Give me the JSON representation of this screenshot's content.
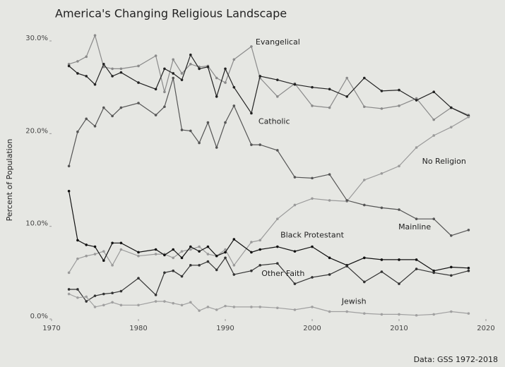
{
  "chart_data": {
    "type": "line",
    "title": "America's Changing Religious Landscape",
    "ylabel": "Percent of Population",
    "source": "Data: GSS 1972-2018",
    "x": [
      1972,
      1973,
      1974,
      1975,
      1976,
      1977,
      1978,
      1980,
      1982,
      1983,
      1984,
      1985,
      1986,
      1987,
      1988,
      1989,
      1990,
      1991,
      1993,
      1994,
      1996,
      1998,
      2000,
      2002,
      2004,
      2006,
      2008,
      2010,
      2012,
      2014,
      2016,
      2018
    ],
    "xlim": [
      1970,
      2020
    ],
    "xticks": [
      1970,
      1980,
      1990,
      2000,
      2010,
      2020
    ],
    "ylim": [
      0,
      30
    ],
    "yticks": [
      {
        "value": 0,
        "label": "0.0%"
      },
      {
        "value": 10,
        "label": "10.0%"
      },
      {
        "value": 20,
        "label": "20.0%"
      },
      {
        "value": 30,
        "label": "30.0%"
      }
    ],
    "series": [
      {
        "name": "Evangelical",
        "color": "#8a8a8a",
        "values": [
          27.5,
          27.8,
          28.3,
          30.6,
          27.2,
          27.0,
          27.0,
          27.3,
          28.4,
          24.5,
          28.0,
          26.5,
          27.5,
          27.2,
          27.3,
          26.0,
          25.5,
          28.0,
          29.4,
          26.0,
          24.0,
          25.4,
          23.0,
          22.8,
          26.0,
          22.9,
          22.7,
          23.0,
          23.8,
          21.5,
          22.8,
          22.0
        ]
      },
      {
        "name": "Catholic",
        "color": "#222222",
        "values": [
          27.3,
          26.5,
          26.2,
          25.3,
          27.5,
          26.2,
          26.6,
          25.5,
          24.8,
          27.0,
          26.5,
          25.8,
          28.5,
          27.0,
          27.2,
          24.0,
          27.0,
          25.0,
          22.2,
          26.2,
          25.8,
          25.3,
          25.0,
          24.8,
          24.0,
          26.0,
          24.6,
          24.7,
          23.6,
          24.5,
          22.8,
          21.9
        ]
      },
      {
        "name": "No Religion",
        "color": "#9a9a9a",
        "values": [
          5.0,
          6.5,
          6.8,
          7.0,
          7.3,
          5.8,
          7.5,
          6.8,
          7.0,
          7.0,
          6.6,
          7.3,
          7.5,
          7.8,
          7.0,
          6.8,
          7.5,
          5.8,
          8.3,
          8.5,
          10.8,
          12.3,
          13.0,
          12.8,
          12.7,
          15.0,
          15.7,
          16.5,
          18.5,
          19.8,
          20.7,
          21.8
        ]
      },
      {
        "name": "Mainline",
        "color": "#555555",
        "values": [
          16.5,
          20.2,
          21.6,
          20.8,
          22.8,
          21.9,
          22.8,
          23.3,
          22.0,
          22.9,
          26.0,
          20.4,
          20.3,
          19.0,
          21.2,
          18.5,
          21.2,
          23.0,
          18.8,
          18.8,
          18.2,
          15.3,
          15.2,
          15.6,
          12.8,
          12.3,
          12.0,
          11.8,
          10.8,
          10.8,
          9.0,
          9.6
        ]
      },
      {
        "name": "Black Protestant",
        "color": "#111111",
        "values": [
          13.8,
          8.5,
          8.0,
          7.8,
          6.3,
          8.2,
          8.2,
          7.2,
          7.5,
          6.9,
          7.5,
          6.6,
          7.8,
          7.3,
          7.8,
          6.8,
          7.2,
          8.6,
          7.2,
          7.5,
          7.8,
          7.3,
          7.8,
          6.6,
          5.8,
          6.6,
          6.4,
          6.4,
          6.4,
          5.2,
          5.6,
          5.5
        ]
      },
      {
        "name": "Other Faith",
        "color": "#333333",
        "values": [
          3.2,
          3.2,
          1.9,
          2.5,
          2.7,
          2.8,
          3.0,
          4.4,
          2.6,
          5.0,
          5.2,
          4.6,
          5.8,
          5.8,
          6.2,
          5.3,
          6.6,
          4.8,
          5.2,
          5.8,
          6.0,
          3.8,
          4.5,
          4.8,
          5.7,
          4.0,
          5.1,
          3.8,
          5.4,
          5.0,
          4.7,
          5.2
        ]
      },
      {
        "name": "Jewish",
        "color": "#a0a0a0",
        "values": [
          2.7,
          2.3,
          2.4,
          1.3,
          1.5,
          1.8,
          1.5,
          1.5,
          1.9,
          1.9,
          1.7,
          1.5,
          1.8,
          0.9,
          1.3,
          1.0,
          1.4,
          1.3,
          1.3,
          1.3,
          1.2,
          1.0,
          1.3,
          0.8,
          0.8,
          0.6,
          0.5,
          0.5,
          0.4,
          0.5,
          0.8,
          0.6
        ]
      }
    ]
  }
}
